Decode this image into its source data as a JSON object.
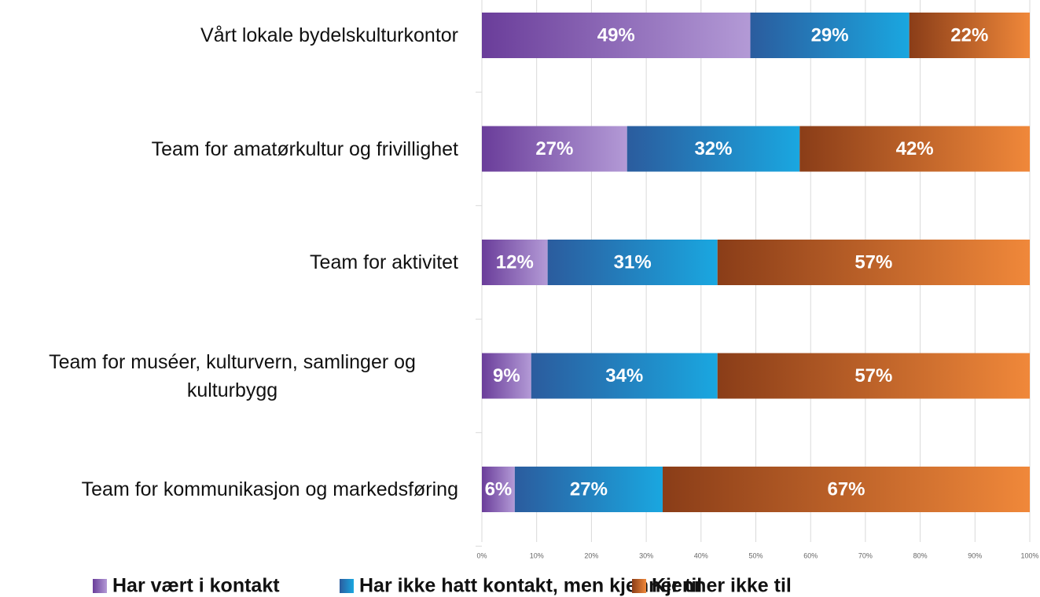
{
  "chart_data": {
    "type": "stacked_barh",
    "categories": [
      "Vårt lokale bydelskulturkontor",
      "Team for amatørkultur og frivillighet",
      "Team for aktivitet",
      "Team for muséer, kulturvern, samlinger og kulturbygg",
      "Team for kommunikasjon og markedsføring"
    ],
    "series": [
      {
        "name": "Har vært i kontakt",
        "color": "#b39ad6",
        "values": [
          49,
          26.5,
          12,
          9,
          6
        ],
        "value_labels": [
          "49%",
          "27%",
          "12%",
          "9%",
          "6%"
        ]
      },
      {
        "name": "Har ikke hatt kontakt, men kjenner til",
        "color": "#1aa7e0",
        "values": [
          29,
          31.5,
          31,
          34,
          27
        ],
        "value_labels": [
          "29%",
          "32%",
          "31%",
          "34%",
          "27%"
        ]
      },
      {
        "name": "Kjenner ikke til",
        "color": "#f0883a",
        "values": [
          22,
          42,
          57,
          57,
          67
        ],
        "value_labels": [
          "22%",
          "42%",
          "57%",
          "57%",
          "67%"
        ]
      }
    ],
    "xlim": [
      0,
      100
    ],
    "xticks": [
      {
        "value": 0,
        "label": "0%"
      },
      {
        "value": 10,
        "label": "10%"
      },
      {
        "value": 20,
        "label": "20%"
      },
      {
        "value": 30,
        "label": "30%"
      },
      {
        "value": 40,
        "label": "40%"
      },
      {
        "value": 50,
        "label": "50%"
      },
      {
        "value": 60,
        "label": "60%"
      },
      {
        "value": 70,
        "label": "70%"
      },
      {
        "value": 80,
        "label": "80%"
      },
      {
        "value": 90,
        "label": "90%"
      },
      {
        "value": 100,
        "label": "100%"
      }
    ],
    "grid": true,
    "legend": "bottom"
  }
}
